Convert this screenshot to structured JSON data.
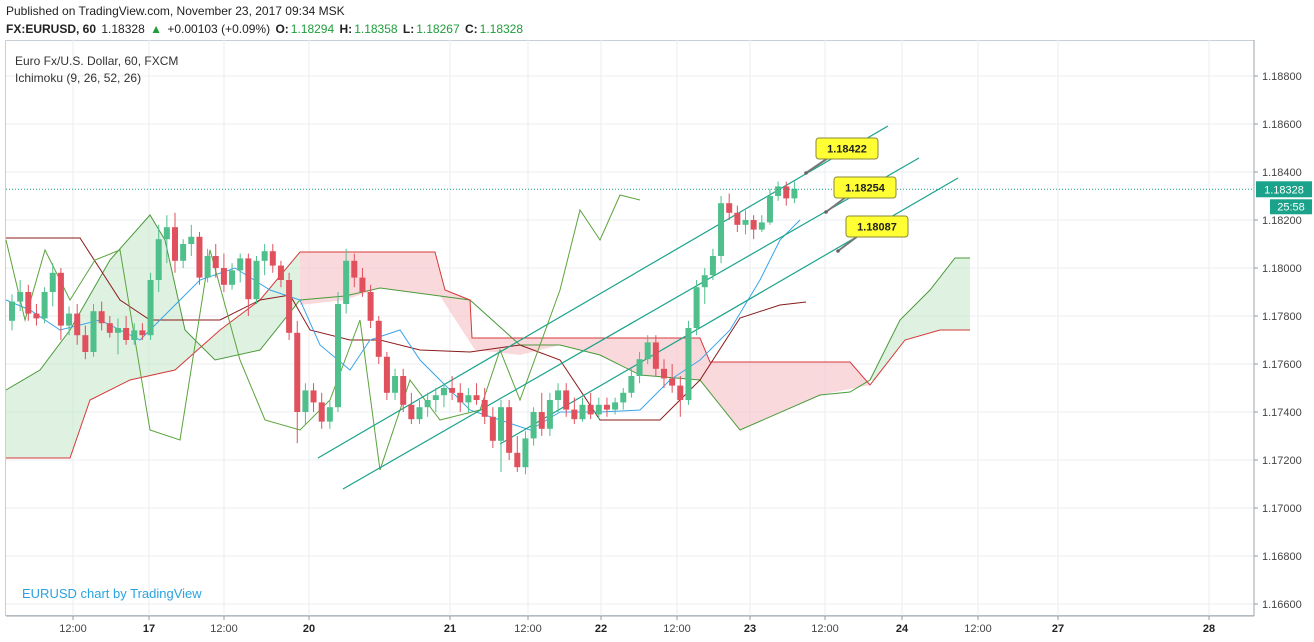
{
  "header": {
    "published": "Published on TradingView.com, November 23, 2017 09:34 MSK",
    "symbol": "FX:EURUSD, 60",
    "last": "1.18328",
    "change_arrow": "▲",
    "change": "+0.00103 (+0.09%)",
    "o_label": "O:",
    "o_value": "1.18294",
    "h_label": "H:",
    "h_value": "1.18358",
    "l_label": "L:",
    "l_value": "1.18267",
    "c_label": "C:",
    "c_value": "1.18328"
  },
  "legend": {
    "series_title": "Euro Fx/U.S. Dollar, 60, FXCM",
    "indicator": "Ichimoku (9, 26, 52, 26)"
  },
  "watermark": "EURUSD chart by TradingView",
  "colors": {
    "up": "#4fbf8c",
    "down": "#e0505d",
    "grid": "#e8edf1",
    "conversion": "#3aa4e8",
    "base": "#8b1a1a",
    "lagging": "#5ca33c",
    "spanA": "#4a9a3a",
    "spanB": "#d43a3a",
    "channel": "#1aa38a",
    "callout": "#ffff33",
    "price_tag": "#1aa38a",
    "timer_tag": "#1aa38a"
  },
  "chart_data": {
    "type": "candlestick",
    "ylim": [
      1.1655,
      1.1895
    ],
    "y_ticks": [
      "1.18800",
      "1.18600",
      "1.18400",
      "1.18200",
      "1.18000",
      "1.17800",
      "1.17600",
      "1.17400",
      "1.17200",
      "1.17000",
      "1.16800",
      "1.16600"
    ],
    "x_ticks": [
      "12:00",
      "17",
      "12:00",
      "20",
      "21",
      "12:00",
      "22",
      "12:00",
      "23",
      "12:00",
      "24",
      "12:00",
      "27",
      "28"
    ],
    "last_price": "1.18328",
    "countdown": "25:58",
    "callouts": [
      "1.18422",
      "1.18254",
      "1.18087"
    ],
    "candles": [
      [
        1.1778,
        1.1789,
        1.1774,
        1.1786
      ],
      [
        1.1786,
        1.1795,
        1.1782,
        1.179
      ],
      [
        1.179,
        1.1793,
        1.1778,
        1.1781
      ],
      [
        1.1781,
        1.1785,
        1.1776,
        1.1779
      ],
      [
        1.1779,
        1.1792,
        1.1777,
        1.179
      ],
      [
        1.179,
        1.1802,
        1.1784,
        1.1798
      ],
      [
        1.1798,
        1.18,
        1.177,
        1.1776
      ],
      [
        1.1776,
        1.1784,
        1.1772,
        1.1781
      ],
      [
        1.1781,
        1.1785,
        1.1768,
        1.1772
      ],
      [
        1.1772,
        1.1776,
        1.1762,
        1.1765
      ],
      [
        1.1765,
        1.1785,
        1.1763,
        1.1782
      ],
      [
        1.1782,
        1.1786,
        1.1774,
        1.1777
      ],
      [
        1.1777,
        1.178,
        1.1771,
        1.1773
      ],
      [
        1.1773,
        1.1779,
        1.1764,
        1.1775
      ],
      [
        1.1775,
        1.178,
        1.1768,
        1.177
      ],
      [
        1.177,
        1.1777,
        1.1768,
        1.1774
      ],
      [
        1.1774,
        1.1777,
        1.177,
        1.1772
      ],
      [
        1.1772,
        1.1798,
        1.177,
        1.1795
      ],
      [
        1.1795,
        1.1818,
        1.179,
        1.1812
      ],
      [
        1.1812,
        1.1822,
        1.1802,
        1.1817
      ],
      [
        1.1817,
        1.1823,
        1.1798,
        1.1803
      ],
      [
        1.1803,
        1.1812,
        1.18,
        1.181
      ],
      [
        1.181,
        1.1818,
        1.1805,
        1.1813
      ],
      [
        1.1813,
        1.1815,
        1.1793,
        1.1796
      ],
      [
        1.1796,
        1.1808,
        1.1794,
        1.1805
      ],
      [
        1.1805,
        1.181,
        1.1796,
        1.18
      ],
      [
        1.18,
        1.1806,
        1.179,
        1.1793
      ],
      [
        1.1793,
        1.1802,
        1.1791,
        1.1799
      ],
      [
        1.1799,
        1.1806,
        1.1794,
        1.1804
      ],
      [
        1.1804,
        1.1806,
        1.178,
        1.1787
      ],
      [
        1.1787,
        1.1805,
        1.1785,
        1.1803
      ],
      [
        1.1803,
        1.181,
        1.1797,
        1.1807
      ],
      [
        1.1807,
        1.181,
        1.1798,
        1.1801
      ],
      [
        1.1801,
        1.1803,
        1.1792,
        1.1795
      ],
      [
        1.1795,
        1.1798,
        1.177,
        1.1773
      ],
      [
        1.1773,
        1.1778,
        1.1727,
        1.174
      ],
      [
        1.174,
        1.1752,
        1.1735,
        1.1749
      ],
      [
        1.1749,
        1.1752,
        1.174,
        1.1744
      ],
      [
        1.1744,
        1.1748,
        1.1733,
        1.1736
      ],
      [
        1.1736,
        1.1745,
        1.1733,
        1.1742
      ],
      [
        1.1742,
        1.179,
        1.174,
        1.1785
      ],
      [
        1.1785,
        1.1808,
        1.1781,
        1.1803
      ],
      [
        1.1803,
        1.1806,
        1.1792,
        1.1796
      ],
      [
        1.1796,
        1.18,
        1.1788,
        1.179
      ],
      [
        1.179,
        1.1793,
        1.1775,
        1.1778
      ],
      [
        1.1778,
        1.178,
        1.176,
        1.1763
      ],
      [
        1.1763,
        1.1765,
        1.1745,
        1.1748
      ],
      [
        1.1748,
        1.1758,
        1.1745,
        1.1755
      ],
      [
        1.1755,
        1.1758,
        1.174,
        1.1743
      ],
      [
        1.1743,
        1.1748,
        1.1735,
        1.1737
      ],
      [
        1.1737,
        1.1745,
        1.1735,
        1.1742
      ],
      [
        1.1742,
        1.1748,
        1.1738,
        1.1745
      ],
      [
        1.1745,
        1.175,
        1.174,
        1.1747
      ],
      [
        1.1747,
        1.1752,
        1.1742,
        1.175
      ],
      [
        1.175,
        1.1755,
        1.1745,
        1.1748
      ],
      [
        1.1748,
        1.1752,
        1.174,
        1.1744
      ],
      [
        1.1744,
        1.175,
        1.174,
        1.1747
      ],
      [
        1.1747,
        1.1752,
        1.1743,
        1.1745
      ],
      [
        1.1745,
        1.175,
        1.1735,
        1.1738
      ],
      [
        1.1738,
        1.1742,
        1.1725,
        1.1728
      ],
      [
        1.1728,
        1.1745,
        1.1715,
        1.1742
      ],
      [
        1.1742,
        1.1745,
        1.172,
        1.1723
      ],
      [
        1.1723,
        1.173,
        1.1715,
        1.1717
      ],
      [
        1.1717,
        1.1732,
        1.1714,
        1.1729
      ],
      [
        1.1729,
        1.1742,
        1.1726,
        1.174
      ],
      [
        1.174,
        1.1748,
        1.173,
        1.1733
      ],
      [
        1.1733,
        1.1748,
        1.173,
        1.1745
      ],
      [
        1.1745,
        1.1752,
        1.174,
        1.1749
      ],
      [
        1.1749,
        1.1752,
        1.1738,
        1.1741
      ],
      [
        1.1741,
        1.1746,
        1.1735,
        1.1737
      ],
      [
        1.1737,
        1.1746,
        1.1736,
        1.1743
      ],
      [
        1.1743,
        1.1748,
        1.1737,
        1.1739
      ],
      [
        1.1739,
        1.1746,
        1.1737,
        1.1743
      ],
      [
        1.1743,
        1.1746,
        1.1738,
        1.1741
      ],
      [
        1.1741,
        1.1746,
        1.1739,
        1.1744
      ],
      [
        1.1744,
        1.175,
        1.1741,
        1.1748
      ],
      [
        1.1748,
        1.1758,
        1.1746,
        1.1755
      ],
      [
        1.1755,
        1.1765,
        1.1752,
        1.1762
      ],
      [
        1.1762,
        1.1772,
        1.176,
        1.1769
      ],
      [
        1.1769,
        1.1772,
        1.1755,
        1.1758
      ],
      [
        1.1758,
        1.1762,
        1.175,
        1.1754
      ],
      [
        1.1754,
        1.176,
        1.1748,
        1.1751
      ],
      [
        1.1751,
        1.1755,
        1.1738,
        1.1745
      ],
      [
        1.1745,
        1.1778,
        1.1743,
        1.1775
      ],
      [
        1.1775,
        1.1795,
        1.1772,
        1.1792
      ],
      [
        1.1792,
        1.18,
        1.1785,
        1.1797
      ],
      [
        1.1797,
        1.1808,
        1.1795,
        1.1805
      ],
      [
        1.1805,
        1.183,
        1.1802,
        1.1827
      ],
      [
        1.1827,
        1.1831,
        1.182,
        1.1823
      ],
      [
        1.1823,
        1.1826,
        1.1815,
        1.1818
      ],
      [
        1.1818,
        1.1824,
        1.1814,
        1.182
      ],
      [
        1.182,
        1.1822,
        1.1812,
        1.1816
      ],
      [
        1.1816,
        1.1822,
        1.1815,
        1.1819
      ],
      [
        1.1819,
        1.1833,
        1.1818,
        1.183
      ],
      [
        1.183,
        1.1836,
        1.1828,
        1.1834
      ],
      [
        1.1834,
        1.1836,
        1.1826,
        1.1829
      ],
      [
        1.1829,
        1.1836,
        1.1827,
        1.1833
      ]
    ]
  }
}
